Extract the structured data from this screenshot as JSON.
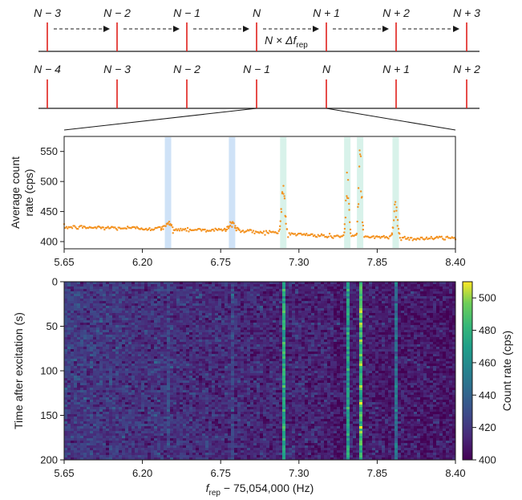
{
  "comb_diagram": {
    "row1_labels": [
      "N − 3",
      "N − 2",
      "N − 1",
      "N",
      "N + 1",
      "N + 2",
      "N + 3"
    ],
    "row2_labels": [
      "N − 4",
      "N − 3",
      "N − 2",
      "N − 1",
      "N",
      "N + 1",
      "N + 2"
    ],
    "shift_label_prefix": "N × Δf",
    "shift_label_sub": "rep"
  },
  "chart_data": [
    {
      "type": "scatter",
      "ylabel_line1": "Average count",
      "ylabel_line2": "rate (cps)",
      "xlim": [
        5.65,
        8.4
      ],
      "ylim": [
        388,
        575
      ],
      "x_ticks": [
        "5.65",
        "6.20",
        "6.75",
        "7.30",
        "7.85",
        "8.40"
      ],
      "y_ticks": [
        "400",
        "450",
        "500",
        "550"
      ],
      "point_color": "#f39220",
      "baseline": {
        "x": [
          5.65,
          6.2,
          6.75,
          7.05,
          7.3,
          7.5,
          7.85,
          8.1,
          8.4
        ],
        "y": [
          424,
          422,
          419,
          416,
          412,
          409,
          408,
          405,
          406
        ]
      },
      "peaks": [
        {
          "x": 6.38,
          "height": 10,
          "width": 0.02
        },
        {
          "x": 6.83,
          "height": 14,
          "width": 0.02
        },
        {
          "x": 7.19,
          "height": 80,
          "width": 0.012
        },
        {
          "x": 7.64,
          "height": 110,
          "width": 0.01
        },
        {
          "x": 7.73,
          "height": 150,
          "width": 0.01
        },
        {
          "x": 7.98,
          "height": 60,
          "width": 0.012
        }
      ],
      "highlight_bands": [
        {
          "x": 6.38,
          "color": "#cfe2f7"
        },
        {
          "x": 6.83,
          "color": "#cfe2f7"
        },
        {
          "x": 7.19,
          "color": "#d8f2ea"
        },
        {
          "x": 7.64,
          "color": "#d8f2ea"
        },
        {
          "x": 7.73,
          "color": "#d8f2ea"
        },
        {
          "x": 7.98,
          "color": "#d8f2ea"
        }
      ]
    },
    {
      "type": "heatmap",
      "xlabel_main": "f",
      "xlabel_sub": "rep",
      "xlabel_rest": " − 75,054,000 (Hz)",
      "ylabel": "Time after excitation (s)",
      "xlim": [
        5.65,
        8.4
      ],
      "ylim": [
        0,
        200
      ],
      "x_ticks": [
        "5.65",
        "6.20",
        "6.75",
        "7.30",
        "7.85",
        "8.40"
      ],
      "y_ticks": [
        "0",
        "50",
        "100",
        "150",
        "200"
      ],
      "colorbar_label": "Count rate (cps)",
      "colorbar_range": [
        400,
        510
      ],
      "colorbar_ticks": [
        "400",
        "420",
        "440",
        "460",
        "480",
        "500"
      ],
      "colormap": "viridis",
      "lines": [
        {
          "x": 6.38,
          "intensity": 8
        },
        {
          "x": 6.83,
          "intensity": 10
        },
        {
          "x": 7.19,
          "intensity": 62
        },
        {
          "x": 7.64,
          "intensity": 58
        },
        {
          "x": 7.73,
          "intensity": 75
        },
        {
          "x": 7.98,
          "intensity": 35
        }
      ]
    }
  ]
}
